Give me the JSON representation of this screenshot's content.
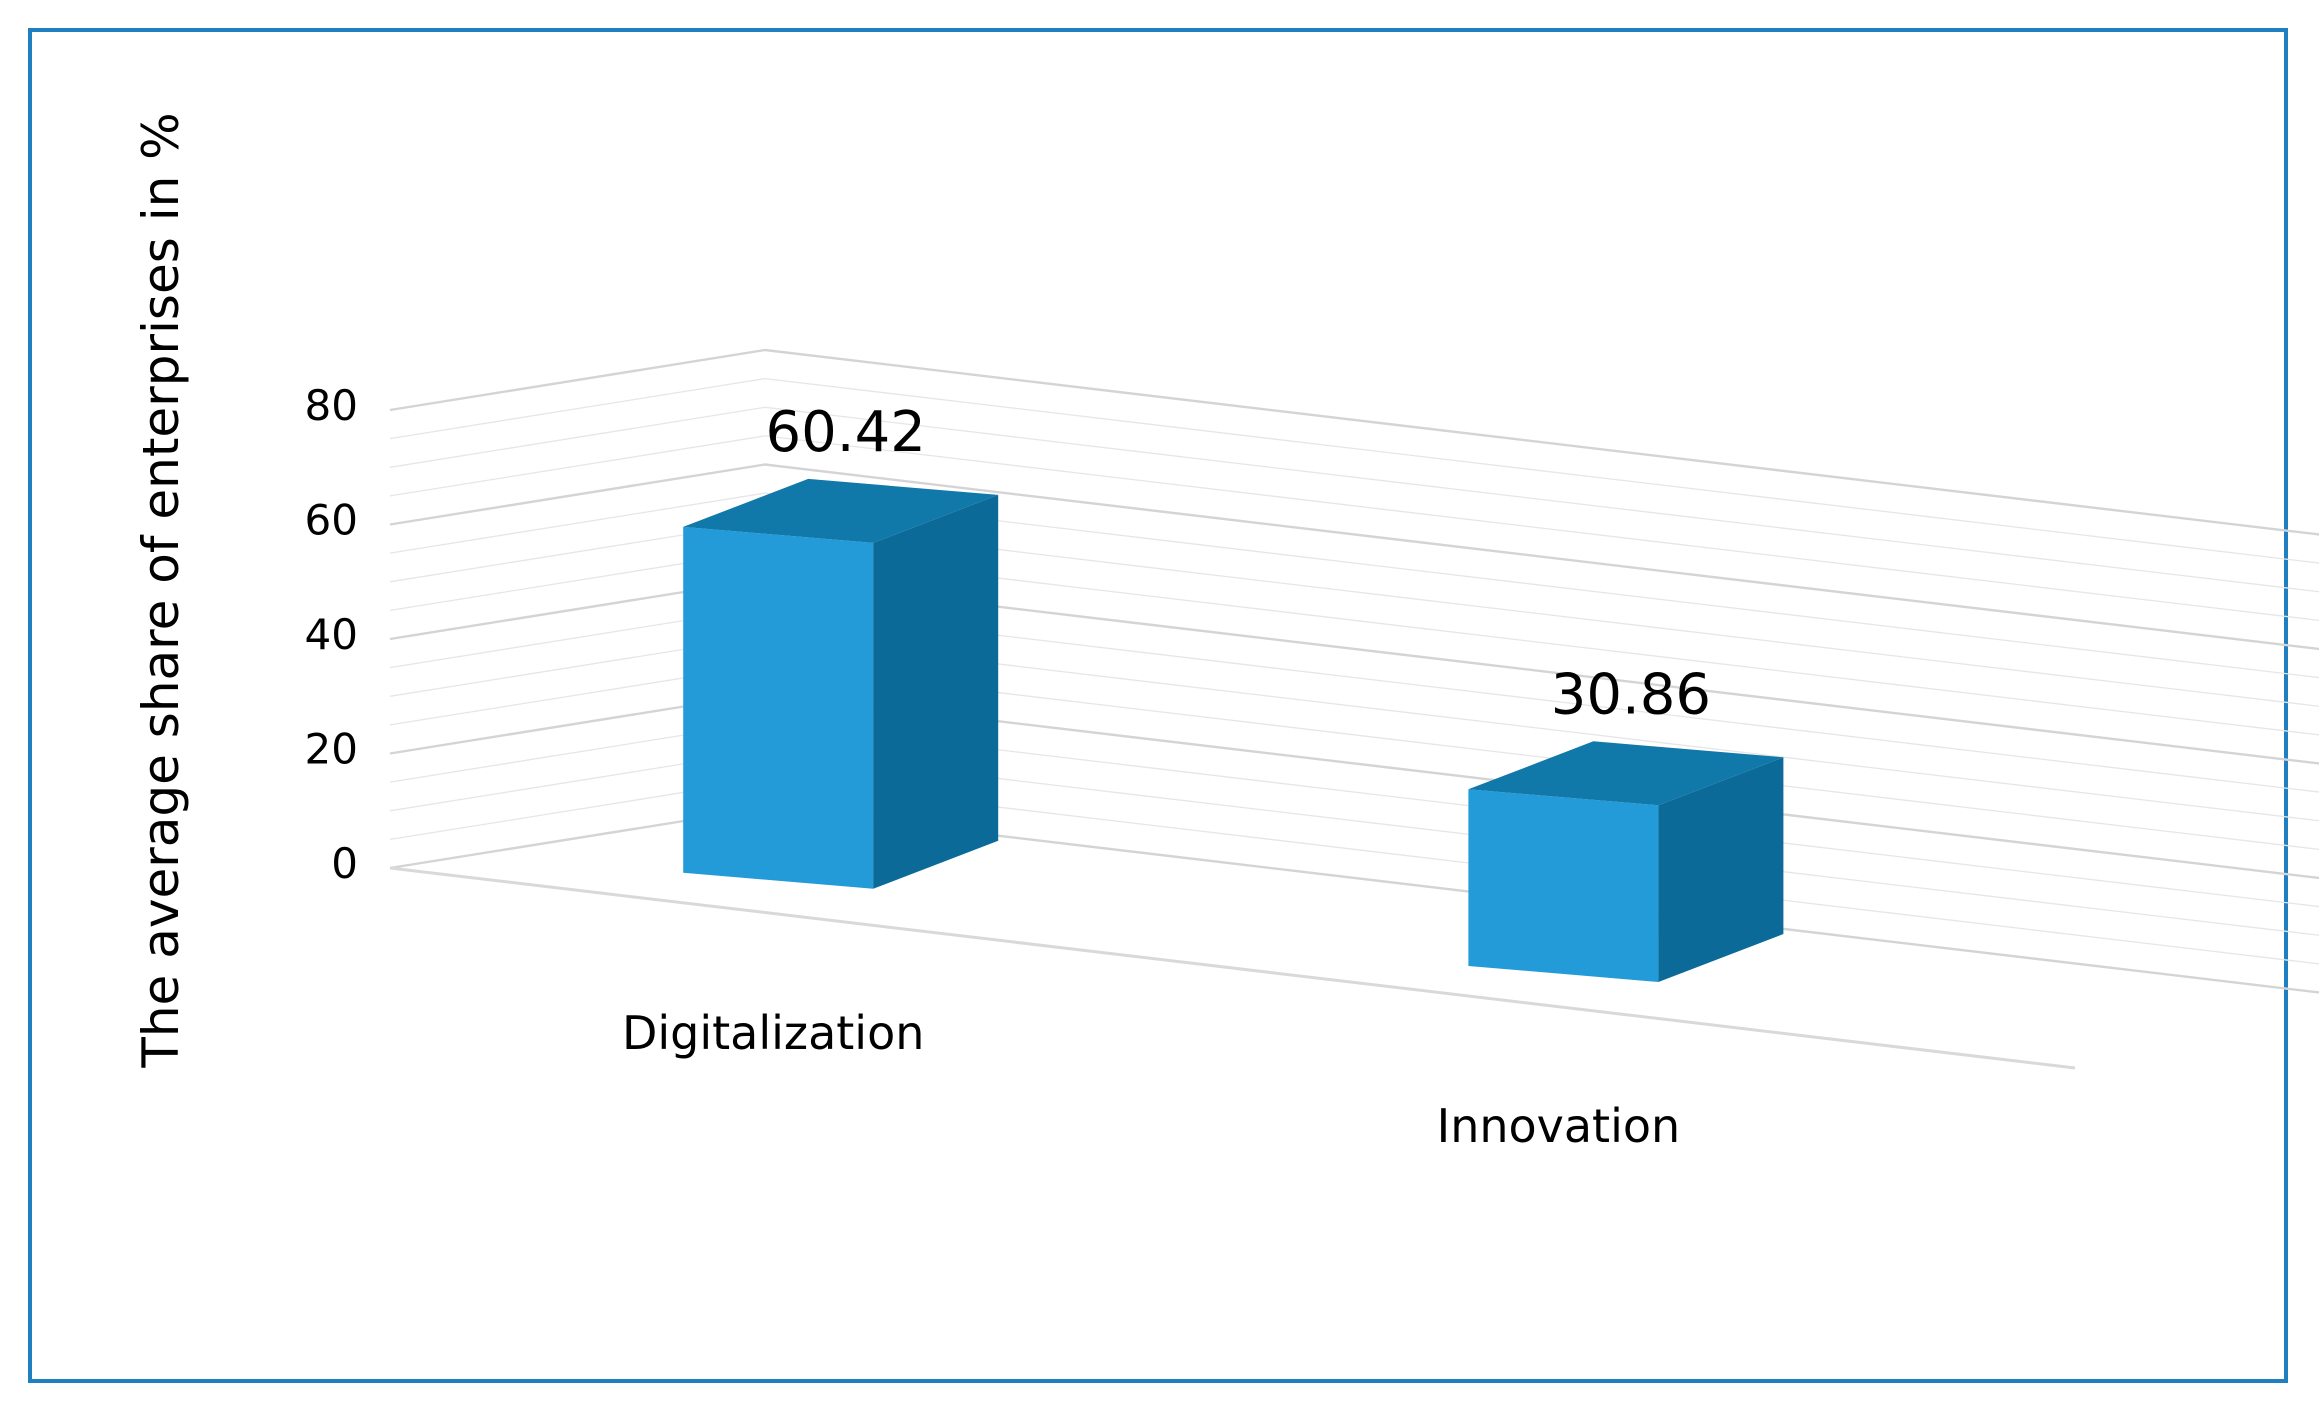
{
  "chart_data": {
    "type": "bar",
    "categories": [
      "Digitalization",
      "Innovation"
    ],
    "values": [
      60.42,
      30.86
    ],
    "data_labels": [
      "60.42",
      "30.86"
    ],
    "title": "",
    "xlabel": "",
    "ylabel": "The average share of enterprises in %",
    "ylim": [
      0,
      80
    ],
    "yticks": [
      0,
      20,
      40,
      60,
      80
    ],
    "ytick_labels": [
      "0",
      "20",
      "40",
      "60",
      "80"
    ],
    "grid": true,
    "style": "3d-column",
    "colors": {
      "front": "#239bd9",
      "side": "#0c6a99",
      "top": "#1178aa",
      "grid": "#d9d9d9",
      "frame": "#1f7fc0"
    }
  }
}
